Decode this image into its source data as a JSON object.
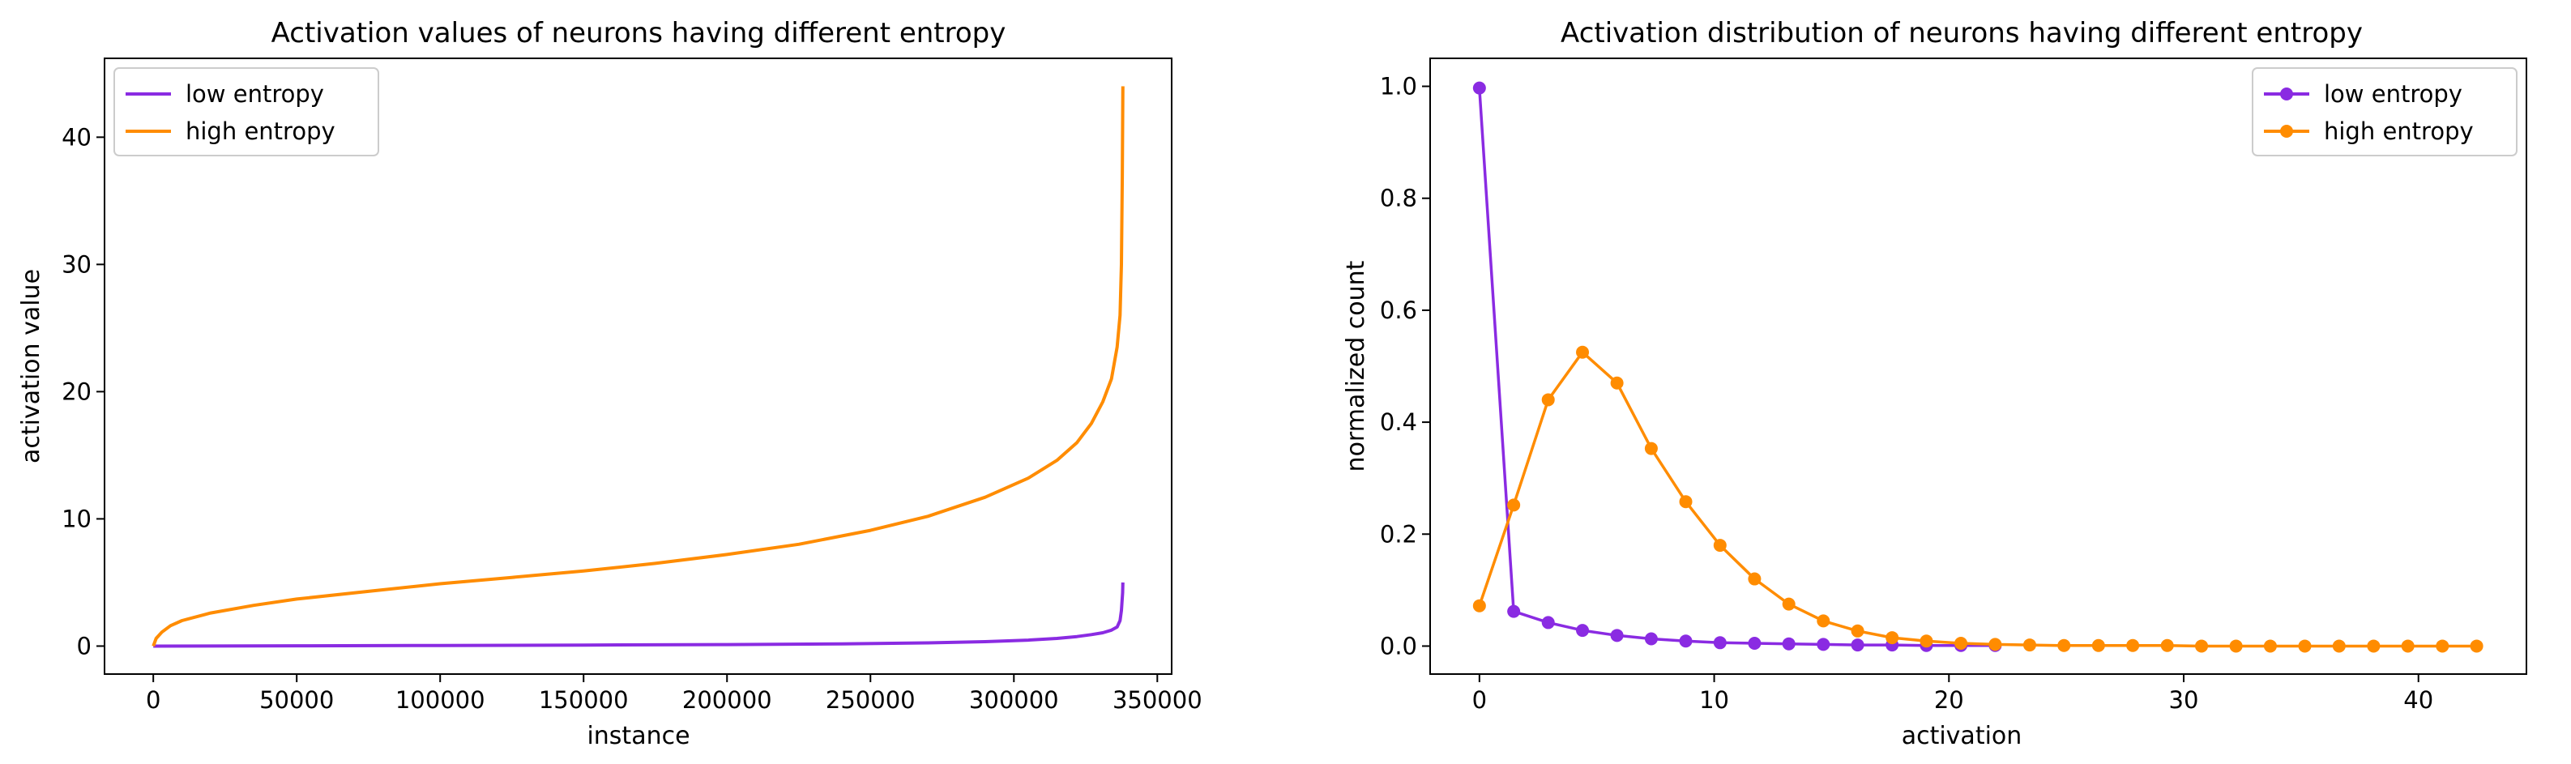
{
  "colors": {
    "low": "#8a2be2",
    "high": "#ff8c00"
  },
  "chart_data": [
    {
      "type": "line",
      "title": "Activation values of neurons having different entropy",
      "xlabel": "instance",
      "ylabel": "activation value",
      "xlim": [
        -17000,
        355000
      ],
      "ylim": [
        -2.2,
        46.2
      ],
      "xticks": [
        0,
        50000,
        100000,
        150000,
        200000,
        250000,
        300000,
        350000
      ],
      "xtick_labels": [
        "0",
        "50000",
        "100000",
        "150000",
        "200000",
        "250000",
        "300000",
        "350000"
      ],
      "yticks": [
        0,
        10,
        20,
        30,
        40
      ],
      "ytick_labels": [
        "0",
        "10",
        "20",
        "30",
        "40"
      ],
      "legend_position": "upper-left",
      "series": [
        {
          "name": "low entropy",
          "color_key": "low",
          "x": [
            0,
            50000,
            100000,
            150000,
            200000,
            240000,
            270000,
            290000,
            305000,
            315000,
            322000,
            327000,
            331000,
            334000,
            336000,
            337000,
            337500,
            337900,
            338000
          ],
          "y": [
            0,
            0.02,
            0.05,
            0.08,
            0.12,
            0.17,
            0.25,
            0.35,
            0.47,
            0.6,
            0.75,
            0.9,
            1.05,
            1.25,
            1.5,
            2.0,
            2.8,
            4.2,
            5.0
          ]
        },
        {
          "name": "high entropy",
          "color_key": "high",
          "x": [
            0,
            1000,
            3000,
            6000,
            10000,
            20000,
            35000,
            50000,
            75000,
            100000,
            125000,
            150000,
            175000,
            200000,
            225000,
            250000,
            270000,
            290000,
            305000,
            315000,
            322000,
            327000,
            331000,
            334000,
            336000,
            337000,
            337500,
            337800,
            338000
          ],
          "y": [
            0,
            0.6,
            1.1,
            1.6,
            2.0,
            2.6,
            3.2,
            3.7,
            4.3,
            4.9,
            5.4,
            5.9,
            6.5,
            7.2,
            8.0,
            9.1,
            10.2,
            11.7,
            13.2,
            14.6,
            16.0,
            17.5,
            19.2,
            21.0,
            23.5,
            26.0,
            30.0,
            37.0,
            44.0
          ]
        }
      ]
    },
    {
      "type": "line",
      "title": "Activation distribution of neurons having different entropy",
      "xlabel": "activation",
      "ylabel": "normalized count",
      "xlim": [
        -2.1,
        44.6
      ],
      "ylim": [
        -0.05,
        1.05
      ],
      "xticks": [
        0,
        10,
        20,
        30,
        40
      ],
      "xtick_labels": [
        "0",
        "10",
        "20",
        "30",
        "40"
      ],
      "yticks": [
        0.0,
        0.2,
        0.4,
        0.6,
        0.8,
        1.0
      ],
      "ytick_labels": [
        "0.0",
        "0.2",
        "0.4",
        "0.6",
        "0.8",
        "1.0"
      ],
      "legend_position": "upper-right",
      "markers": true,
      "series": [
        {
          "name": "low entropy",
          "color_key": "low",
          "x": [
            0,
            1.46,
            2.93,
            4.39,
            5.86,
            7.32,
            8.79,
            10.25,
            11.72,
            13.18,
            14.65,
            16.11,
            17.58,
            19.04,
            20.51,
            21.97
          ],
          "y": [
            0.997,
            0.062,
            0.042,
            0.028,
            0.019,
            0.013,
            0.009,
            0.006,
            0.005,
            0.004,
            0.003,
            0.002,
            0.002,
            0.001,
            0.001,
            0.001
          ]
        },
        {
          "name": "high entropy",
          "color_key": "high",
          "x": [
            0,
            1.46,
            2.93,
            4.39,
            5.86,
            7.32,
            8.79,
            10.25,
            11.72,
            13.18,
            14.65,
            16.11,
            17.58,
            19.04,
            20.51,
            21.97,
            23.44,
            24.9,
            26.37,
            27.83,
            29.3,
            30.76,
            32.23,
            33.69,
            35.16,
            36.62,
            38.09,
            39.55,
            41.02,
            42.48
          ],
          "y": [
            0.072,
            0.252,
            0.44,
            0.525,
            0.47,
            0.353,
            0.258,
            0.18,
            0.12,
            0.075,
            0.045,
            0.027,
            0.015,
            0.009,
            0.005,
            0.003,
            0.002,
            0.001,
            0.001,
            0.001,
            0.001,
            0,
            0,
            0,
            0,
            0,
            0,
            0,
            0,
            0
          ]
        }
      ]
    }
  ]
}
